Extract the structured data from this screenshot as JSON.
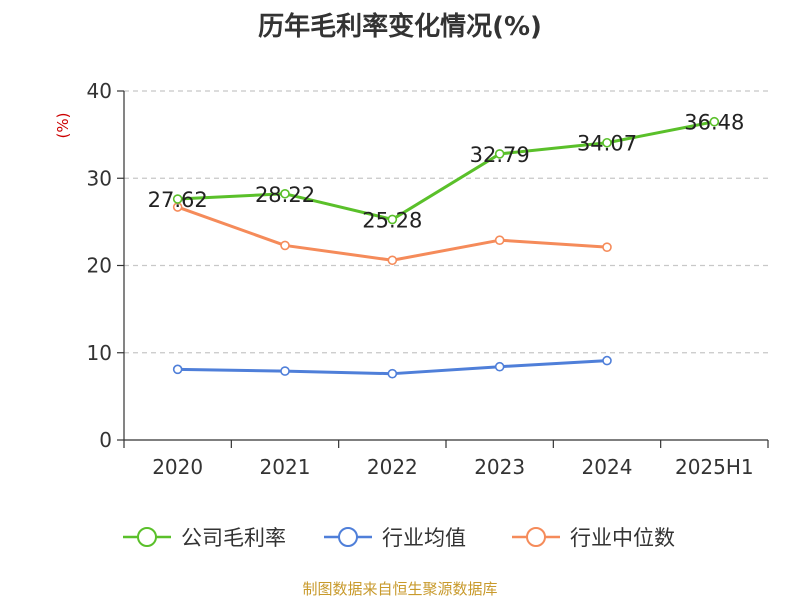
{
  "chart_data": {
    "type": "line",
    "title": "历年毛利率变化情况(%)",
    "ylabel": "(%)",
    "xlabel": "",
    "categories": [
      "2020",
      "2021",
      "2022",
      "2023",
      "2024",
      "2025H1"
    ],
    "ylim": [
      0,
      40
    ],
    "yticks": [
      0,
      10,
      20,
      30,
      40
    ],
    "grid": true,
    "legend_position": "bottom",
    "series": [
      {
        "name": "公司毛利率",
        "color": "#5ac02a",
        "values": [
          27.62,
          28.22,
          25.28,
          32.79,
          34.07,
          36.48
        ],
        "labels": [
          "27.62",
          "28.22",
          "25.28",
          "32.79",
          "34.07",
          "36.48"
        ]
      },
      {
        "name": "行业均值",
        "color": "#4f7fd9",
        "values": [
          8.1,
          7.9,
          7.6,
          8.4,
          9.1,
          null
        ]
      },
      {
        "name": "行业中位数",
        "color": "#f58b5a",
        "values": [
          26.7,
          22.3,
          20.6,
          22.9,
          22.1,
          null
        ]
      }
    ],
    "source": "制图数据来自恒生聚源数据库"
  }
}
